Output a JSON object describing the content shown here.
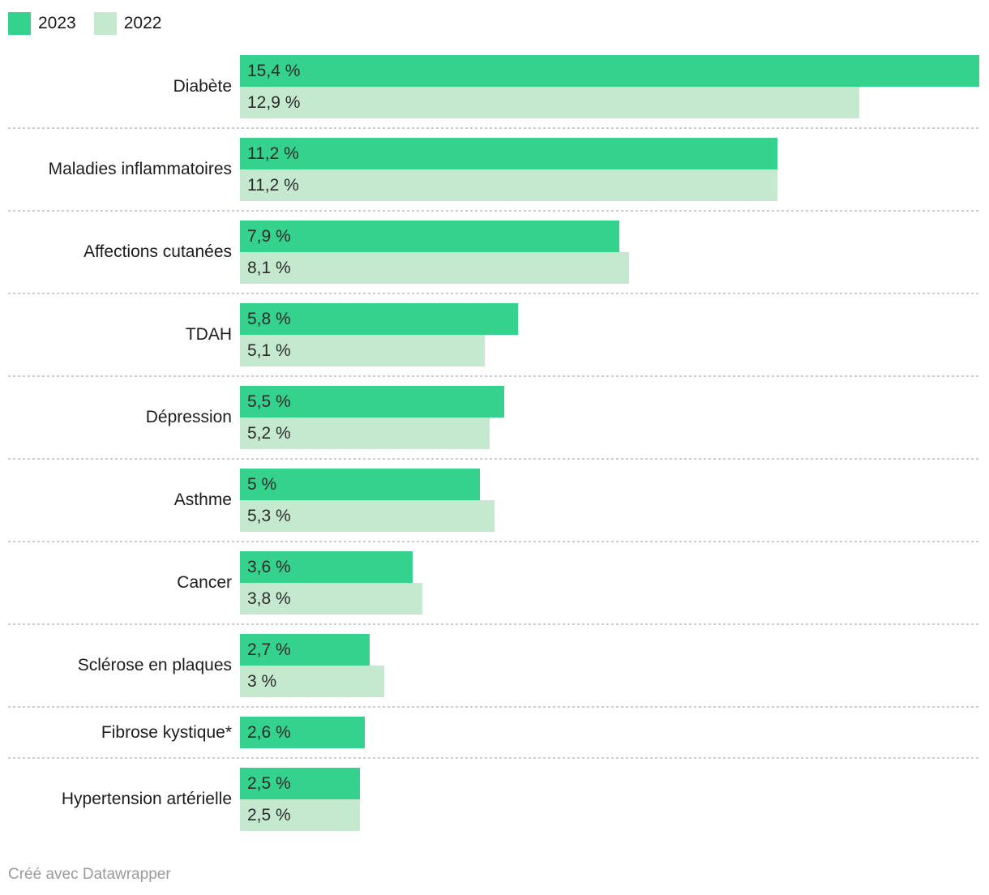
{
  "legend": {
    "items": [
      {
        "label": "2023",
        "color": "#35d28e"
      },
      {
        "label": "2022",
        "color": "#c5e9cf"
      }
    ]
  },
  "footer": {
    "credit": "Créé avec Datawrapper"
  },
  "colors": {
    "series_2023": "#35d28e",
    "series_2022": "#c5e9cf",
    "text": "#1d1d1d",
    "separator": "#cdcdcd",
    "footer_text": "#9b9b9b"
  },
  "chart_data": {
    "type": "bar",
    "orientation": "horizontal",
    "title": "",
    "xlabel": "",
    "ylabel": "",
    "xlim": [
      0,
      15.4
    ],
    "grid": false,
    "legend_position": "top-left",
    "value_suffix": "%",
    "categories": [
      "Diabète",
      "Maladies inflammatoires",
      "Affections cutanées",
      "TDAH",
      "Dépression",
      "Asthme",
      "Cancer",
      "Sclérose en plaques",
      "Fibrose kystique*",
      "Hypertension artérielle"
    ],
    "series": [
      {
        "name": "2023",
        "color": "#35d28e",
        "values": [
          15.4,
          11.2,
          7.9,
          5.8,
          5.5,
          5.0,
          3.6,
          2.7,
          2.6,
          2.5
        ],
        "labels": [
          "15,4 %",
          "11,2 %",
          "7,9 %",
          "5,8 %",
          "5,5 %",
          "5 %",
          "3,6 %",
          "2,7 %",
          "2,6 %",
          "2,5 %"
        ]
      },
      {
        "name": "2022",
        "color": "#c5e9cf",
        "values": [
          12.9,
          11.2,
          8.1,
          5.1,
          5.2,
          5.3,
          3.8,
          3.0,
          null,
          2.5
        ],
        "labels": [
          "12,9 %",
          "11,2 %",
          "8,1 %",
          "5,1 %",
          "5,2 %",
          "5,3 %",
          "3,8 %",
          "3 %",
          null,
          "2,5 %"
        ]
      }
    ]
  }
}
